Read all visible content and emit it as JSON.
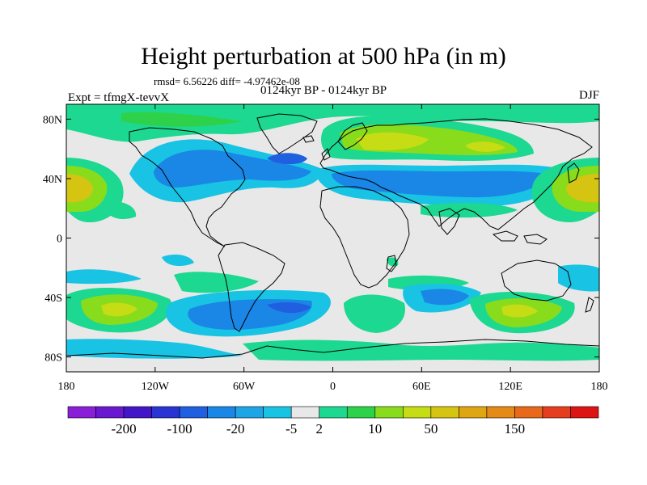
{
  "title": "Height perturbation at 500 hPa (in m)",
  "stats_line": "rmsd= 6.56226 diff= -4.97462e-08",
  "period": "0124kyr BP - 0124kyr BP",
  "experiment": "Expt = tfmgX-tevvX",
  "season": "DJF",
  "map": {
    "projection": "cylindrical-equidistant",
    "lat_range": [
      -90,
      90
    ],
    "lon_range": [
      -180,
      180
    ],
    "lat_ticks": [
      "80N",
      "40N",
      "0",
      "40S",
      "80S"
    ],
    "lon_ticks": [
      "180",
      "120W",
      "60W",
      "0",
      "60E",
      "120E",
      "180"
    ],
    "background_color": "#e8e8e8",
    "coastline_color": "#000000"
  },
  "colorbar": {
    "labels": [
      "-200",
      "-100",
      "-20",
      "-5",
      "2",
      "10",
      "50",
      "150"
    ],
    "colors": [
      "#8a1fd8",
      "#6a17d0",
      "#4216c8",
      "#2a34d4",
      "#1f5fe0",
      "#1a86e6",
      "#1fa5e6",
      "#18c3e4",
      "#e8e8e8",
      "#1cd890",
      "#2ed24a",
      "#88dc1c",
      "#c6dc14",
      "#d6c412",
      "#dea612",
      "#e48a18",
      "#e8691c",
      "#e43e1e",
      "#dc1414"
    ]
  }
}
